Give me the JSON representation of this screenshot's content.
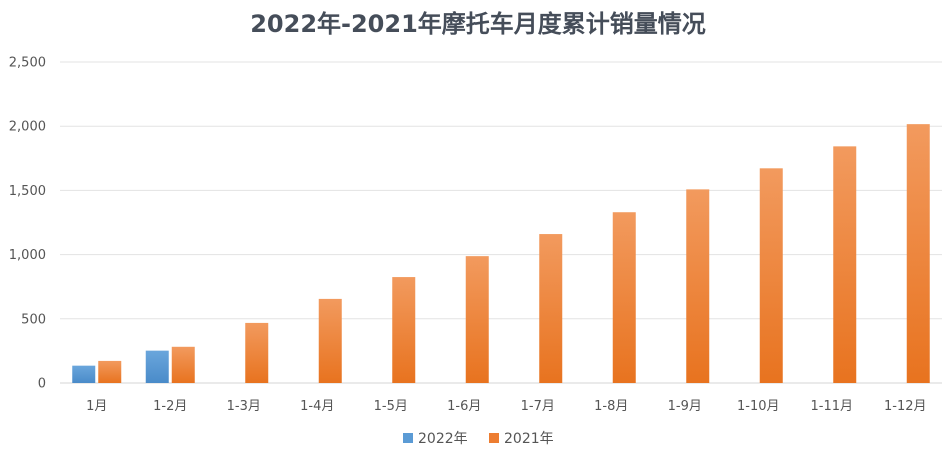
{
  "chart_data": {
    "type": "bar",
    "title": "2022年-2021年摩托车月度累计销量情况",
    "xlabel": "",
    "ylabel": "",
    "categories": [
      "1月",
      "1-2月",
      "1-3月",
      "1-4月",
      "1-5月",
      "1-6月",
      "1-7月",
      "1-8月",
      "1-9月",
      "1-10月",
      "1-11月",
      "1-12月"
    ],
    "series": [
      {
        "name": "2022年",
        "color": "#5b9bd5",
        "values": [
          135,
          252,
          null,
          null,
          null,
          null,
          null,
          null,
          null,
          null,
          null,
          null
        ]
      },
      {
        "name": "2021年",
        "color": "#ed7d31",
        "values": [
          172,
          282,
          468,
          655,
          825,
          988,
          1160,
          1330,
          1508,
          1672,
          1843,
          2016
        ]
      }
    ],
    "ylim": [
      0,
      2500
    ],
    "yticks": [
      0,
      500,
      1000,
      1500,
      2000,
      2500
    ],
    "ytick_labels": [
      "0",
      "500",
      "1,000",
      "1,500",
      "2,000",
      "2,500"
    ],
    "grid": true,
    "legend_position": "bottom"
  }
}
